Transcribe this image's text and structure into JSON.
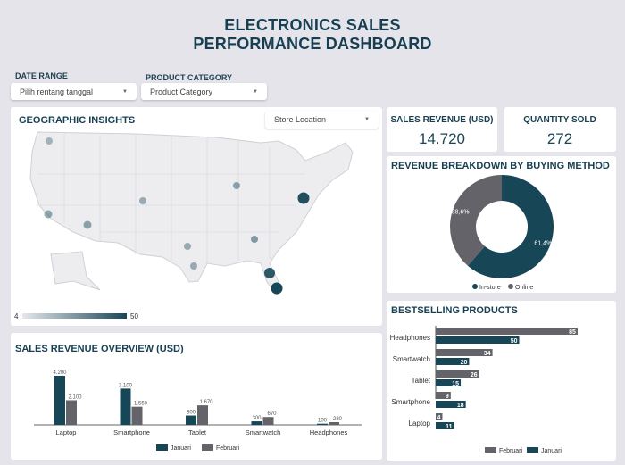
{
  "header": {
    "title_line1": "ELECTRONICS SALES",
    "title_line2": "PERFORMANCE DASHBOARD"
  },
  "filters": {
    "date_label": "DATE RANGE",
    "date_value": "Pilih rentang tanggal",
    "category_label": "PRODUCT CATEGORY",
    "category_value": "Product Category"
  },
  "geo": {
    "title": "GEOGRAPHIC INSIGHTS",
    "dropdown": "Store Location",
    "legend_min": "4",
    "legend_max": "50"
  },
  "kpis": {
    "revenue_label": "SALES REVENUE (USD)",
    "revenue_value": "14.720",
    "qty_label": "QUANTITY SOLD",
    "qty_value": "272"
  },
  "colors": {
    "primary": "#174657",
    "secondary": "#636369"
  },
  "chart_data": [
    {
      "type": "pie",
      "title": "REVENUE BREAKDOWN BY BUYING METHOD",
      "labels": [
        "In-store",
        "Online"
      ],
      "values": [
        61.4,
        38.6
      ],
      "value_labels": [
        "61,4%",
        "38,6%"
      ]
    },
    {
      "type": "bar",
      "title": "BESTSELLING PRODUCTS",
      "orientation": "horizontal",
      "categories": [
        "Headphones",
        "Smartwatch",
        "Tablet",
        "Smartphone",
        "Laptop"
      ],
      "series": [
        {
          "name": "Februari",
          "values": [
            85,
            34,
            26,
            9,
            4
          ]
        },
        {
          "name": "Januari",
          "values": [
            50,
            20,
            15,
            18,
            11
          ]
        }
      ]
    },
    {
      "type": "bar",
      "title": "SALES REVENUE OVERVIEW (USD)",
      "categories": [
        "Laptop",
        "Smartphone",
        "Tablet",
        "Smartwatch",
        "Headphones"
      ],
      "series": [
        {
          "name": "Januari",
          "values": [
            4200,
            3100,
            800,
            300,
            100
          ],
          "labels": [
            "4.200",
            "3.100",
            "800",
            "300",
            "100"
          ]
        },
        {
          "name": "Februari",
          "values": [
            2100,
            1550,
            1670,
            670,
            230
          ],
          "labels": [
            "2.100",
            "1.550",
            "1.670",
            "670",
            "230"
          ]
        }
      ]
    }
  ]
}
